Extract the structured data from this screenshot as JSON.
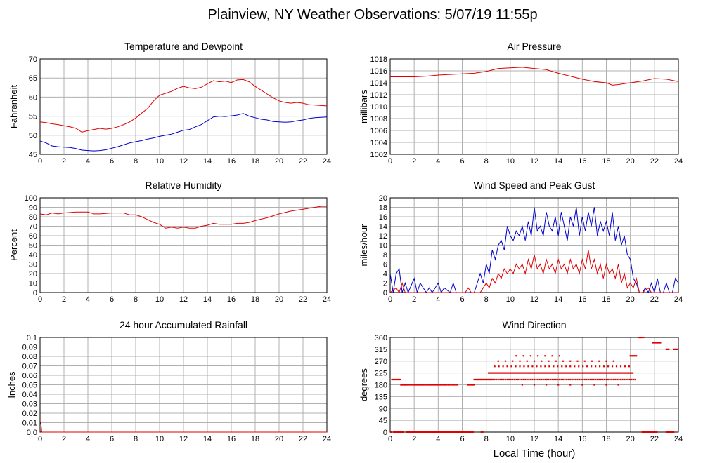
{
  "page_title": "Plainview, NY Weather Observations: 5/07/19 11:55p",
  "shared_xlabel": "Local Time (hour)",
  "colors": {
    "temperature": "#e00000",
    "dewpoint": "#0000cc",
    "grid": "#b0b0b0",
    "frame": "#000000"
  },
  "chart_data": [
    {
      "id": "temp",
      "type": "line",
      "title": "Temperature and Dewpoint",
      "xlabel": "",
      "ylabel": "Fahrenheit",
      "xlim": [
        0,
        24
      ],
      "ylim": [
        45,
        70
      ],
      "xticks": [
        0,
        2,
        4,
        6,
        8,
        10,
        12,
        14,
        16,
        18,
        20,
        22,
        24
      ],
      "yticks": [
        45,
        50,
        55,
        60,
        65,
        70
      ],
      "grid": true,
      "series": [
        {
          "color": "#e00000",
          "x": [
            0,
            0.5,
            1,
            1.5,
            2,
            2.5,
            3,
            3.5,
            4,
            4.5,
            5,
            5.5,
            6,
            6.5,
            7,
            7.5,
            8,
            8.5,
            9,
            9.5,
            10,
            10.5,
            11,
            11.5,
            12,
            12.5,
            13,
            13.5,
            14,
            14.5,
            15,
            15.5,
            16,
            16.5,
            17,
            17.5,
            18,
            18.5,
            19,
            19.5,
            20,
            20.5,
            21,
            21.5,
            22,
            22.5,
            23,
            23.5,
            24
          ],
          "y": [
            53.5,
            53.3,
            53.0,
            52.8,
            52.5,
            52.2,
            51.8,
            50.8,
            51.2,
            51.5,
            51.8,
            51.6,
            51.8,
            52.2,
            52.8,
            53.5,
            54.5,
            55.8,
            57.0,
            59.0,
            60.5,
            61.0,
            61.5,
            62.3,
            62.8,
            62.4,
            62.2,
            62.6,
            63.5,
            64.3,
            64.0,
            64.2,
            63.8,
            64.5,
            64.6,
            64.0,
            62.8,
            61.8,
            60.8,
            59.8,
            59.0,
            58.6,
            58.4,
            58.6,
            58.4,
            58.0,
            57.9,
            57.8,
            57.7
          ]
        },
        {
          "color": "#0000cc",
          "x": [
            0,
            0.5,
            1,
            1.5,
            2,
            2.5,
            3,
            3.5,
            4,
            4.5,
            5,
            5.5,
            6,
            6.5,
            7,
            7.5,
            8,
            8.5,
            9,
            9.5,
            10,
            10.5,
            11,
            11.5,
            12,
            12.5,
            13,
            13.5,
            14,
            14.5,
            15,
            15.5,
            16,
            16.5,
            17,
            17.5,
            18,
            18.5,
            19,
            19.5,
            20,
            20.5,
            21,
            21.5,
            22,
            22.5,
            23,
            23.5,
            24
          ],
          "y": [
            48.5,
            48.0,
            47.2,
            47.0,
            46.9,
            46.8,
            46.5,
            46.1,
            46.0,
            45.9,
            46.0,
            46.2,
            46.6,
            47.0,
            47.5,
            48.0,
            48.3,
            48.6,
            49.0,
            49.3,
            49.7,
            50.0,
            50.3,
            50.8,
            51.3,
            51.5,
            52.2,
            52.8,
            53.8,
            54.8,
            55.0,
            54.9,
            55.1,
            55.3,
            55.7,
            55.0,
            54.6,
            54.2,
            54.0,
            53.6,
            53.5,
            53.4,
            53.5,
            53.8,
            54.0,
            54.4,
            54.6,
            54.7,
            54.8
          ]
        }
      ]
    },
    {
      "id": "pres",
      "type": "line",
      "title": "Air Pressure",
      "xlabel": "",
      "ylabel": "millibars",
      "xlim": [
        0,
        24
      ],
      "ylim": [
        1002,
        1018
      ],
      "xticks": [
        0,
        2,
        4,
        6,
        8,
        10,
        12,
        14,
        16,
        18,
        20,
        22,
        24
      ],
      "yticks": [
        1002,
        1004,
        1006,
        1008,
        1010,
        1012,
        1014,
        1016,
        1018
      ],
      "grid": true,
      "series": [
        {
          "color": "#e00000",
          "x": [
            0,
            1,
            2,
            3,
            4,
            5,
            6,
            7,
            8,
            9,
            10,
            11,
            12,
            13,
            14,
            15,
            16,
            17,
            18,
            18.5,
            19,
            20,
            21,
            22,
            23,
            24
          ],
          "y": [
            1015.0,
            1015.0,
            1015.0,
            1015.1,
            1015.3,
            1015.4,
            1015.5,
            1015.6,
            1015.9,
            1016.4,
            1016.5,
            1016.6,
            1016.4,
            1016.2,
            1015.6,
            1015.1,
            1014.6,
            1014.2,
            1014.0,
            1013.6,
            1013.7,
            1014.0,
            1014.3,
            1014.7,
            1014.6,
            1014.2
          ]
        }
      ]
    },
    {
      "id": "rh",
      "type": "line",
      "title": "Relative Humidity",
      "xlabel": "",
      "ylabel": "Percent",
      "xlim": [
        0,
        24
      ],
      "ylim": [
        0,
        100
      ],
      "xticks": [
        0,
        2,
        4,
        6,
        8,
        10,
        12,
        14,
        16,
        18,
        20,
        22,
        24
      ],
      "yticks": [
        0,
        10,
        20,
        30,
        40,
        50,
        60,
        70,
        80,
        90,
        100
      ],
      "grid": true,
      "series": [
        {
          "color": "#e00000",
          "x": [
            0,
            0.5,
            1,
            1.5,
            2,
            3,
            4,
            4.5,
            5,
            6,
            7,
            7.5,
            8,
            8.5,
            9,
            9.5,
            10,
            10.5,
            11,
            11.5,
            12,
            12.5,
            13,
            13.5,
            14,
            14.5,
            15,
            15.5,
            16,
            16.5,
            17,
            17.5,
            18,
            19,
            20,
            21,
            22,
            22.5,
            23,
            23.5,
            24
          ],
          "y": [
            83,
            82,
            84,
            83,
            84,
            85,
            85,
            83,
            83,
            84,
            84,
            82,
            82,
            80,
            77,
            74,
            72,
            68,
            69,
            68,
            69,
            68,
            68,
            70,
            71,
            73,
            72,
            72,
            72,
            73,
            73,
            74,
            76,
            79,
            83,
            86,
            88,
            89,
            90,
            91,
            91
          ]
        }
      ]
    },
    {
      "id": "wind",
      "type": "line",
      "title": "Wind Speed and Peak Gust",
      "xlabel": "",
      "ylabel": "miles/hour",
      "xlim": [
        0,
        24
      ],
      "ylim": [
        0,
        20
      ],
      "xticks": [
        0,
        2,
        4,
        6,
        8,
        10,
        12,
        14,
        16,
        18,
        20,
        22,
        24
      ],
      "yticks": [
        0,
        2,
        4,
        6,
        8,
        10,
        12,
        14,
        16,
        18,
        20
      ],
      "grid": true,
      "series": [
        {
          "color": "#0000cc",
          "x": [
            0,
            0.25,
            0.5,
            0.75,
            1,
            1.25,
            1.5,
            2,
            2.25,
            2.5,
            3,
            3.25,
            3.5,
            4,
            4.25,
            4.5,
            5,
            5.25,
            5.5,
            6,
            6.5,
            7,
            7.25,
            7.5,
            7.75,
            8,
            8.25,
            8.5,
            8.75,
            9,
            9.25,
            9.5,
            9.75,
            10,
            10.25,
            10.5,
            10.75,
            11,
            11.25,
            11.5,
            11.75,
            12,
            12.25,
            12.5,
            12.75,
            13,
            13.25,
            13.5,
            13.75,
            14,
            14.25,
            14.5,
            14.75,
            15,
            15.25,
            15.5,
            15.75,
            16,
            16.25,
            16.5,
            16.75,
            17,
            17.25,
            17.5,
            17.75,
            18,
            18.25,
            18.5,
            18.75,
            19,
            19.25,
            19.5,
            19.75,
            20,
            20.25,
            20.5,
            20.75,
            21,
            21.25,
            21.5,
            21.75,
            22,
            22.25,
            22.5,
            22.75,
            23,
            23.25,
            23.5,
            23.75,
            24
          ],
          "y": [
            4,
            0,
            4,
            5,
            0,
            2,
            0,
            3,
            0,
            2,
            0,
            1,
            0,
            2,
            0,
            1,
            0,
            2,
            0,
            0,
            0,
            0,
            2,
            4,
            2,
            6,
            4,
            9,
            7,
            10,
            11,
            9,
            14,
            12,
            11,
            13,
            12,
            14,
            11,
            15,
            12,
            18,
            13,
            14,
            12,
            17,
            14,
            13,
            16,
            12,
            17,
            14,
            11,
            16,
            14,
            18,
            12,
            16,
            13,
            17,
            14,
            18,
            12,
            15,
            13,
            15,
            12,
            17,
            11,
            14,
            10,
            12,
            8,
            7,
            3,
            2,
            0,
            0,
            1,
            0,
            2,
            0,
            3,
            0,
            0,
            2,
            0,
            0,
            3,
            2
          ]
        },
        {
          "color": "#e00000",
          "x": [
            0,
            0.5,
            0.75,
            1,
            1.25,
            6.25,
            6.5,
            6.75,
            7,
            7.5,
            7.75,
            8,
            8.25,
            8.5,
            8.75,
            9,
            9.25,
            9.5,
            9.75,
            10,
            10.25,
            10.5,
            10.75,
            11,
            11.25,
            11.5,
            11.75,
            12,
            12.25,
            12.5,
            12.75,
            13,
            13.25,
            13.5,
            13.75,
            14,
            14.25,
            14.5,
            14.75,
            15,
            15.25,
            15.5,
            15.75,
            16,
            16.25,
            16.5,
            16.75,
            17,
            17.25,
            17.5,
            17.75,
            18,
            18.25,
            18.5,
            18.75,
            19,
            19.25,
            19.5,
            19.75,
            20,
            20.25,
            20.5,
            20.75,
            21,
            21.5,
            21.75,
            22,
            22.5,
            24
          ],
          "y": [
            0,
            1,
            0,
            2,
            0,
            0,
            1,
            0,
            0,
            0,
            1,
            2,
            1,
            3,
            2,
            4,
            3,
            5,
            4,
            5,
            4,
            6,
            5,
            6,
            4,
            7,
            5,
            8,
            5,
            6,
            4,
            7,
            5,
            6,
            4,
            7,
            5,
            6,
            4,
            7,
            5,
            6,
            4,
            7,
            5,
            9,
            5,
            7,
            4,
            6,
            3,
            6,
            4,
            5,
            3,
            6,
            2,
            4,
            1,
            2,
            1,
            3,
            0,
            0,
            1,
            0,
            0,
            0,
            0
          ]
        }
      ]
    },
    {
      "id": "rain",
      "type": "line",
      "title": "24 hour Accumulated Rainfall",
      "xlabel": "",
      "ylabel": "Inches",
      "xlim": [
        0,
        24
      ],
      "ylim": [
        0,
        0.1
      ],
      "xticks": [
        0,
        2,
        4,
        6,
        8,
        10,
        12,
        14,
        16,
        18,
        20,
        22,
        24
      ],
      "yticks": [
        0,
        0.01,
        0.02,
        0.03,
        0.04,
        0.05,
        0.06,
        0.07,
        0.08,
        0.09,
        0.1
      ],
      "ytick_labels": [
        "0.0",
        "0.01",
        "0.02",
        "0.03",
        "0.04",
        "0.05",
        "0.06",
        "0.07",
        "0.08",
        "0.09",
        "0.1"
      ],
      "grid": true,
      "series": [
        {
          "color": "#e00000",
          "x": [
            0,
            0.08,
            0.15,
            24
          ],
          "y": [
            0.012,
            0.008,
            0,
            0
          ]
        }
      ]
    },
    {
      "id": "dir",
      "type": "scatter",
      "title": "Wind Direction",
      "xlabel": "Local Time (hour)",
      "ylabel": "degrees",
      "xlim": [
        0,
        24
      ],
      "ylim": [
        0,
        360
      ],
      "xticks": [
        0,
        2,
        4,
        6,
        8,
        10,
        12,
        14,
        16,
        18,
        20,
        22,
        24
      ],
      "yticks": [
        0,
        45,
        90,
        135,
        180,
        225,
        270,
        315,
        360
      ],
      "grid": true,
      "series": [
        {
          "color": "#e00000",
          "segments": [
            [
              0.0,
              0.15,
              0,
              0.1
            ],
            [
              0.15,
              0.9,
              200,
              0.1
            ],
            [
              0.3,
              1.1,
              0,
              0.1
            ],
            [
              0.9,
              1.2,
              180,
              0.1
            ],
            [
              1.2,
              4.2,
              180,
              0.12
            ],
            [
              1.4,
              6.9,
              0,
              0.1
            ],
            [
              4.3,
              5.6,
              180,
              0.13
            ],
            [
              6.5,
              7.0,
              180,
              0.1
            ],
            [
              7.6,
              7.7,
              0,
              0.1
            ],
            [
              7.0,
              8.5,
              200,
              0.08
            ],
            [
              8.2,
              20.2,
              225,
              0.12
            ],
            [
              8.4,
              20.4,
              200,
              0.15
            ],
            [
              8.7,
              19.9,
              250,
              0.35
            ],
            [
              9.0,
              19.0,
              270,
              0.6
            ],
            [
              10.5,
              14.5,
              290,
              0.6
            ],
            [
              11.0,
              19.8,
              180,
              1.0
            ],
            [
              20.0,
              20.5,
              290,
              0.1
            ],
            [
              20.7,
              21.1,
              360,
              0.1
            ],
            [
              21.0,
              21.5,
              0,
              0.1
            ],
            [
              21.5,
              22.2,
              0,
              0.1
            ],
            [
              21.9,
              22.5,
              340,
              0.1
            ],
            [
              23.0,
              23.6,
              0,
              0.1
            ],
            [
              23.0,
              23.2,
              315,
              0.1
            ],
            [
              23.6,
              24.0,
              315,
              0.1
            ]
          ]
        }
      ]
    }
  ]
}
